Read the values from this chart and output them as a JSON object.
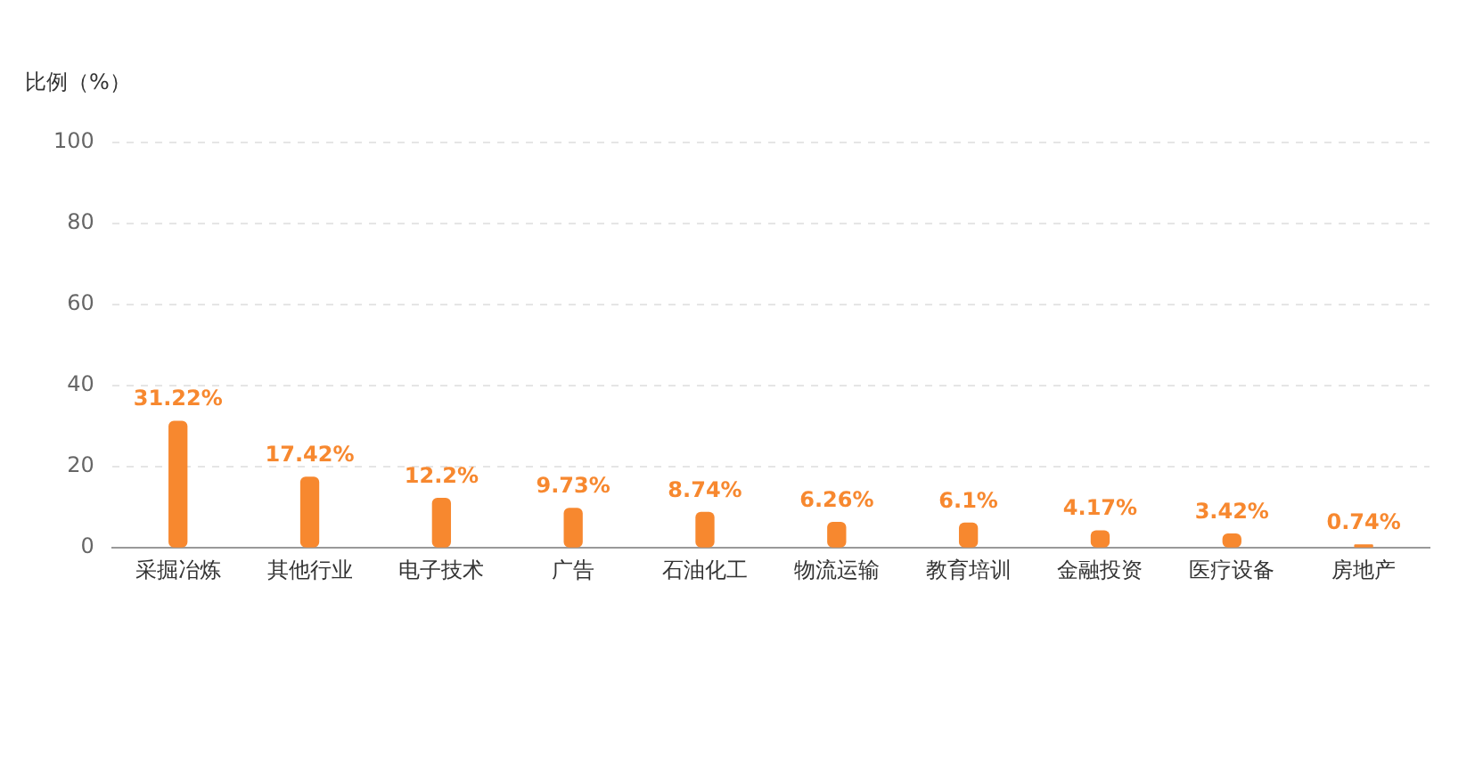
{
  "chart_data": {
    "type": "bar",
    "ylabel": "比例（%）",
    "categories": [
      "采掘冶炼",
      "其他行业",
      "电子技术",
      "广告",
      "石油化工",
      "物流运输",
      "教育培训",
      "金融投资",
      "医疗设备",
      "房地产"
    ],
    "values": [
      31.22,
      17.42,
      12.2,
      9.73,
      8.74,
      6.26,
      6.1,
      4.17,
      3.42,
      0.74
    ],
    "value_labels": [
      "31.22%",
      "17.42%",
      "12.2%",
      "9.73%",
      "8.74%",
      "6.26%",
      "6.1%",
      "4.17%",
      "3.42%",
      "0.74%"
    ],
    "color": "#f7882f",
    "ylim": [
      0,
      100
    ],
    "yticks": [
      0,
      20,
      40,
      60,
      80,
      100
    ],
    "grid": "y"
  }
}
